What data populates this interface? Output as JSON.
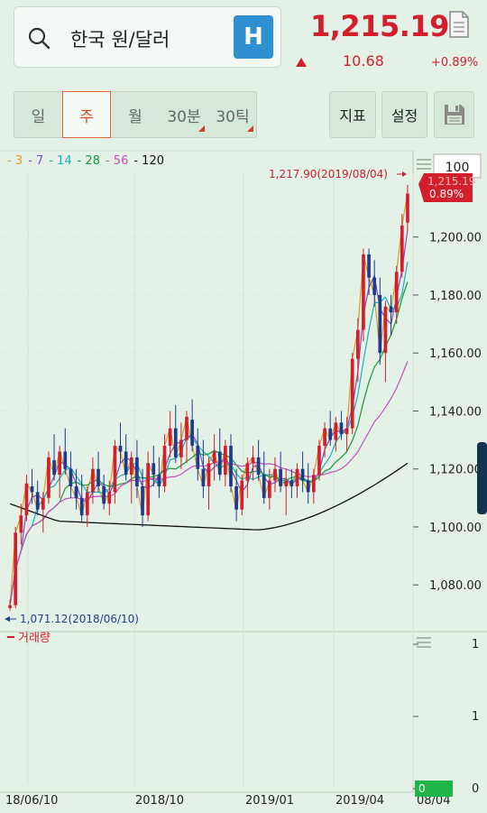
{
  "search": {
    "value": "한국 원/달러",
    "icon": "search-icon"
  },
  "h_button": {
    "label": "H"
  },
  "quote": {
    "price": "1,215.19",
    "change": "10.68",
    "change_pct": "+0.89%",
    "color_up": "#d21f2b"
  },
  "periods": [
    {
      "label": "일",
      "active": false,
      "has_menu": false
    },
    {
      "label": "주",
      "active": true,
      "has_menu": false
    },
    {
      "label": "월",
      "active": false,
      "has_menu": false
    },
    {
      "label": "30분",
      "active": false,
      "has_menu": true
    },
    {
      "label": "30틱",
      "active": false,
      "has_menu": true
    }
  ],
  "toolbar": {
    "indicator_label": "지표",
    "settings_label": "설정",
    "save_icon": "floppy-disk-icon"
  },
  "legend": [
    {
      "label": "3",
      "color": "#e09a2a"
    },
    {
      "label": "7",
      "color": "#7a4fbf"
    },
    {
      "label": "14",
      "color": "#18b2b8"
    },
    {
      "label": "28",
      "color": "#139a3a"
    },
    {
      "label": "56",
      "color": "#c54fbf"
    },
    {
      "label": "120",
      "color": "#111111"
    }
  ],
  "volume_legend": {
    "label": "거래량",
    "color": "#d21f2b"
  },
  "chart_data": {
    "type": "candlestick",
    "zoom": "100",
    "current_price_label": "1,215.19",
    "current_pct_label": "0.89%",
    "y_ticks": [
      "1,200.00",
      "1,180.00",
      "1,160.00",
      "1,140.00",
      "1,120.00",
      "1,100.00",
      "1,080.00"
    ],
    "y_tick_values": [
      1200,
      1180,
      1160,
      1140,
      1120,
      1100,
      1080
    ],
    "ylim": [
      1067,
      1222
    ],
    "x_ticks": [
      "18/06/10",
      "2018/10",
      "2019/01",
      "2019/04",
      "08/04"
    ],
    "high_annotation": "1,217.90(2019/08/04)",
    "high_value": 1217.9,
    "low_annotation": "1,071.12(2018/06/10)",
    "low_value": 1071.12,
    "volume_ticks": [
      "1",
      "1",
      "0"
    ],
    "candles": [
      [
        1072,
        1075,
        1071,
        1073
      ],
      [
        1073,
        1100,
        1072,
        1098
      ],
      [
        1098,
        1108,
        1094,
        1104
      ],
      [
        1104,
        1118,
        1102,
        1115
      ],
      [
        1114,
        1120,
        1108,
        1112
      ],
      [
        1112,
        1116,
        1104,
        1106
      ],
      [
        1106,
        1112,
        1098,
        1110
      ],
      [
        1110,
        1126,
        1108,
        1124
      ],
      [
        1123,
        1132,
        1116,
        1118
      ],
      [
        1118,
        1128,
        1110,
        1126
      ],
      [
        1126,
        1134,
        1118,
        1120
      ],
      [
        1120,
        1126,
        1110,
        1114
      ],
      [
        1114,
        1120,
        1106,
        1110
      ],
      [
        1110,
        1118,
        1102,
        1104
      ],
      [
        1104,
        1114,
        1100,
        1112
      ],
      [
        1112,
        1124,
        1108,
        1120
      ],
      [
        1120,
        1126,
        1112,
        1114
      ],
      [
        1114,
        1118,
        1106,
        1108
      ],
      [
        1108,
        1116,
        1104,
        1112
      ],
      [
        1112,
        1130,
        1108,
        1128
      ],
      [
        1128,
        1136,
        1122,
        1126
      ],
      [
        1126,
        1132,
        1116,
        1118
      ],
      [
        1118,
        1126,
        1108,
        1124
      ],
      [
        1124,
        1130,
        1110,
        1114
      ],
      [
        1114,
        1120,
        1100,
        1104
      ],
      [
        1104,
        1126,
        1102,
        1122
      ],
      [
        1122,
        1128,
        1114,
        1118
      ],
      [
        1118,
        1124,
        1110,
        1114
      ],
      [
        1114,
        1132,
        1112,
        1128
      ],
      [
        1128,
        1140,
        1124,
        1134
      ],
      [
        1134,
        1142,
        1122,
        1124
      ],
      [
        1124,
        1136,
        1120,
        1130
      ],
      [
        1130,
        1140,
        1122,
        1138
      ],
      [
        1137,
        1144,
        1126,
        1128
      ],
      [
        1128,
        1134,
        1116,
        1120
      ],
      [
        1120,
        1130,
        1110,
        1114
      ],
      [
        1114,
        1124,
        1106,
        1122
      ],
      [
        1122,
        1132,
        1116,
        1126
      ],
      [
        1126,
        1134,
        1116,
        1118
      ],
      [
        1118,
        1130,
        1114,
        1128
      ],
      [
        1128,
        1132,
        1112,
        1114
      ],
      [
        1114,
        1120,
        1102,
        1106
      ],
      [
        1106,
        1118,
        1104,
        1116
      ],
      [
        1116,
        1124,
        1110,
        1122
      ],
      [
        1122,
        1128,
        1116,
        1124
      ],
      [
        1124,
        1130,
        1116,
        1118
      ],
      [
        1118,
        1126,
        1108,
        1110
      ],
      [
        1110,
        1120,
        1106,
        1116
      ],
      [
        1116,
        1124,
        1112,
        1120
      ],
      [
        1120,
        1126,
        1112,
        1114
      ],
      [
        1114,
        1120,
        1104,
        1116
      ],
      [
        1116,
        1120,
        1110,
        1114
      ],
      [
        1114,
        1122,
        1110,
        1120
      ],
      [
        1120,
        1126,
        1112,
        1116
      ],
      [
        1116,
        1122,
        1108,
        1112
      ],
      [
        1112,
        1120,
        1108,
        1118
      ],
      [
        1118,
        1130,
        1116,
        1128
      ],
      [
        1128,
        1136,
        1124,
        1134
      ],
      [
        1134,
        1140,
        1128,
        1130
      ],
      [
        1130,
        1138,
        1126,
        1136
      ],
      [
        1136,
        1140,
        1130,
        1132
      ],
      [
        1132,
        1138,
        1126,
        1134
      ],
      [
        1134,
        1160,
        1132,
        1158
      ],
      [
        1158,
        1172,
        1150,
        1168
      ],
      [
        1168,
        1196,
        1164,
        1194
      ],
      [
        1194,
        1196,
        1180,
        1186
      ],
      [
        1186,
        1192,
        1176,
        1180
      ],
      [
        1180,
        1186,
        1156,
        1160
      ],
      [
        1160,
        1178,
        1150,
        1176
      ],
      [
        1176,
        1180,
        1166,
        1174
      ],
      [
        1174,
        1190,
        1170,
        1188
      ],
      [
        1188,
        1208,
        1186,
        1204
      ],
      [
        1205,
        1218,
        1202,
        1215
      ]
    ]
  }
}
